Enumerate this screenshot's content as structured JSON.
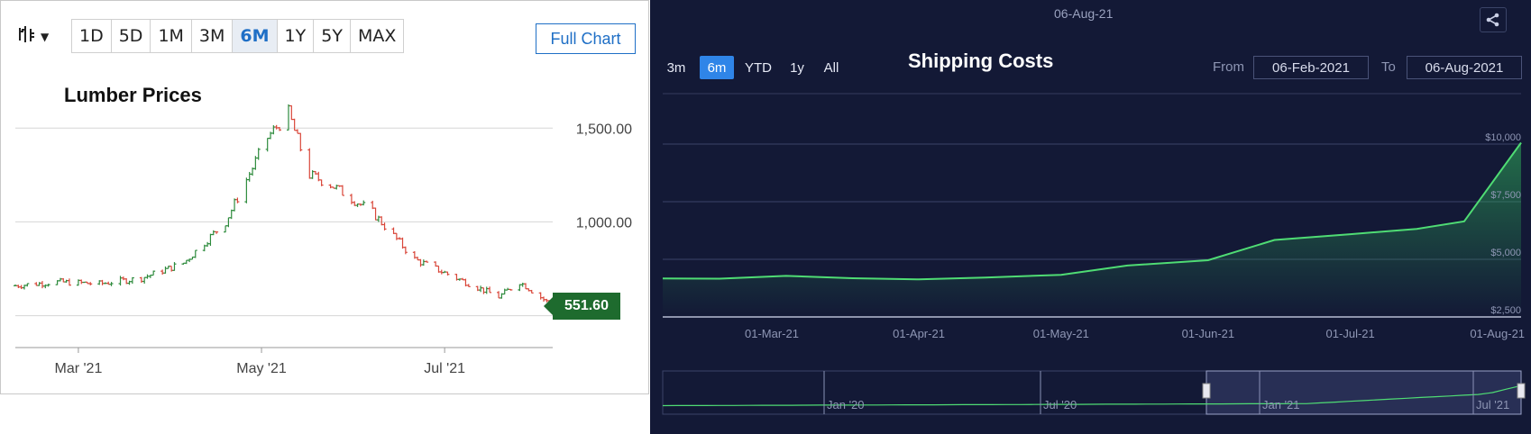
{
  "lumber": {
    "chart_type_icon": "candlestick-icon",
    "ranges": [
      "1D",
      "5D",
      "1M",
      "3M",
      "6M",
      "1Y",
      "5Y",
      "MAX"
    ],
    "active_range": "6M",
    "full_chart_label": "Full Chart",
    "title": "Lumber Prices",
    "last_price": "551.60",
    "up_color": "#2e8b3d",
    "down_color": "#d9473a"
  },
  "shipping": {
    "header_date": "06-Aug-21",
    "range_buttons": [
      "3m",
      "6m",
      "YTD",
      "1y",
      "All"
    ],
    "active_range": "6m",
    "title": "Shipping Costs",
    "from_label": "From",
    "from_value": "06-Feb-2021",
    "to_label": "To",
    "to_value": "06-Aug-2021",
    "share_icon": "share-icon",
    "navigator_labels": [
      "Jan '20",
      "Jul '20",
      "Jan '21",
      "Jul '21"
    ],
    "line_color": "#4fdc74",
    "background": "#131936"
  },
  "chart_data": [
    {
      "type": "candlestick",
      "title": "Lumber Prices",
      "x_ticks": [
        "Mar '21",
        "May '21",
        "Jul '21"
      ],
      "y_ticks": [
        "1,500.00",
        "1,000.00"
      ],
      "ylim": [
        450,
        1650
      ],
      "x": [
        "2021-02-08",
        "2021-02-22",
        "2021-03-08",
        "2021-03-22",
        "2021-04-05",
        "2021-04-19",
        "2021-05-03",
        "2021-05-10",
        "2021-05-17",
        "2021-05-24",
        "2021-06-07",
        "2021-06-21",
        "2021-07-05",
        "2021-07-19",
        "2021-07-26",
        "2021-08-06"
      ],
      "close": [
        660,
        680,
        670,
        700,
        780,
        1000,
        1450,
        1580,
        1250,
        1200,
        1050,
        800,
        700,
        600,
        680,
        551.6
      ],
      "last_price": 551.6
    },
    {
      "type": "area",
      "title": "Shipping Costs",
      "x_ticks": [
        "01-Mar-21",
        "01-Apr-21",
        "01-May-21",
        "01-Jun-21",
        "01-Jul-21",
        "01-Aug-21"
      ],
      "y_ticks": [
        "$10,000",
        "$7,500",
        "$5,000",
        "$2,500"
      ],
      "ylim": [
        2500,
        10000
      ],
      "x": [
        "2021-02-06",
        "2021-02-18",
        "2021-03-04",
        "2021-03-18",
        "2021-04-01",
        "2021-04-15",
        "2021-05-01",
        "2021-05-15",
        "2021-06-01",
        "2021-06-15",
        "2021-07-01",
        "2021-07-15",
        "2021-07-25",
        "2021-08-06"
      ],
      "values": [
        4170,
        4160,
        4280,
        4180,
        4130,
        4210,
        4330,
        4730,
        4960,
        5840,
        6090,
        6320,
        6650,
        10060
      ]
    }
  ]
}
